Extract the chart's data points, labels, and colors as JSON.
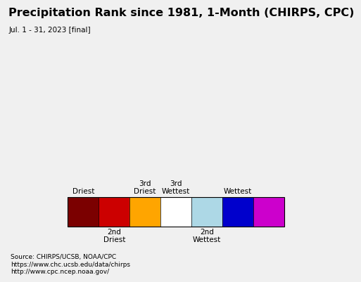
{
  "title": "Precipitation Rank since 1981, 1-Month (CHIRPS, CPC)",
  "subtitle": "Jul. 1 - 31, 2023 [final]",
  "title_fontsize": 11.5,
  "subtitle_fontsize": 7.5,
  "map_bg_color": "#a8dde8",
  "land_color": "#ffffff",
  "border_color": "#000000",
  "legend_bg_color": "#f0f0f0",
  "source_text": "Source: CHIRPS/UCSB, NOAA/CPC\nhttps://www.chc.ucsb.edu/data/chirps\nhttp://www.cpc.ncep.noaa.gov/",
  "source_fontsize": 6.5,
  "legend_colors": [
    "#7b0000",
    "#cc0000",
    "#ffa500",
    "#ffffff",
    "#add8e6",
    "#0000cc",
    "#cc00cc"
  ],
  "top_labels": [
    {
      "idx": 0,
      "text": "Driest"
    },
    {
      "idx": 2,
      "text": "3rd\nDriest"
    },
    {
      "idx": 3,
      "text": "3rd\nWettest"
    },
    {
      "idx": 5,
      "text": "Wettest"
    }
  ],
  "bottom_labels": [
    {
      "idx": 1,
      "text": "2nd\nDriest"
    },
    {
      "idx": 4,
      "text": "2nd\nWettest"
    }
  ],
  "legend_label_fontsize": 7.5
}
